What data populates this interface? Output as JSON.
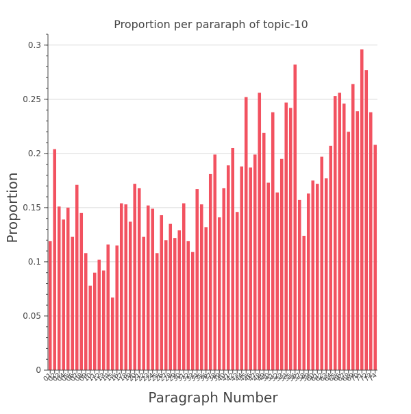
{
  "chart_data": {
    "type": "bar",
    "title": "Proportion per pararaph of topic-10",
    "xlabel": "Paragraph Number",
    "ylabel": "Proportion",
    "ylim": [
      0,
      0.31
    ],
    "yticks": [
      0,
      0.05,
      0.1,
      0.15,
      0.2,
      0.25,
      0.3
    ],
    "ytick_labels": [
      "0",
      "0.05",
      "0.1",
      "0.15",
      "0.2",
      "0.25",
      "0.3"
    ],
    "categories": [
      "01",
      "02",
      "03",
      "04",
      "05",
      "06",
      "07",
      "08",
      "09",
      "10",
      "11",
      "12",
      "13",
      "14",
      "15",
      "16",
      "17",
      "18",
      "19",
      "20",
      "21",
      "22",
      "23",
      "24",
      "25",
      "26",
      "27",
      "28",
      "29",
      "30",
      "31",
      "32",
      "33",
      "34",
      "35",
      "36",
      "37",
      "38",
      "39",
      "40",
      "41",
      "42",
      "43",
      "44",
      "45",
      "46",
      "47",
      "48",
      "49",
      "50",
      "51",
      "52",
      "53",
      "54",
      "55",
      "56",
      "57",
      "58",
      "59",
      "60",
      "61",
      "62",
      "63",
      "64",
      "65",
      "66",
      "67",
      "68",
      "69",
      "70",
      "71",
      "72",
      "73",
      "74"
    ],
    "values": [
      0.119,
      0.204,
      0.151,
      0.139,
      0.15,
      0.123,
      0.171,
      0.145,
      0.108,
      0.078,
      0.09,
      0.102,
      0.092,
      0.116,
      0.067,
      0.115,
      0.154,
      0.153,
      0.137,
      0.172,
      0.168,
      0.123,
      0.152,
      0.149,
      0.108,
      0.143,
      0.12,
      0.135,
      0.122,
      0.129,
      0.154,
      0.119,
      0.109,
      0.167,
      0.153,
      0.132,
      0.181,
      0.199,
      0.141,
      0.168,
      0.189,
      0.205,
      0.146,
      0.188,
      0.252,
      0.187,
      0.199,
      0.256,
      0.219,
      0.173,
      0.238,
      0.164,
      0.195,
      0.247,
      0.242,
      0.282,
      0.157,
      0.124,
      0.163,
      0.175,
      0.172,
      0.197,
      0.177,
      0.207,
      0.253,
      0.256,
      0.246,
      0.22,
      0.264,
      0.239,
      0.296,
      0.277,
      0.238,
      0.208
    ],
    "bar_color": "#f25260",
    "grid": true,
    "legend": "none"
  }
}
